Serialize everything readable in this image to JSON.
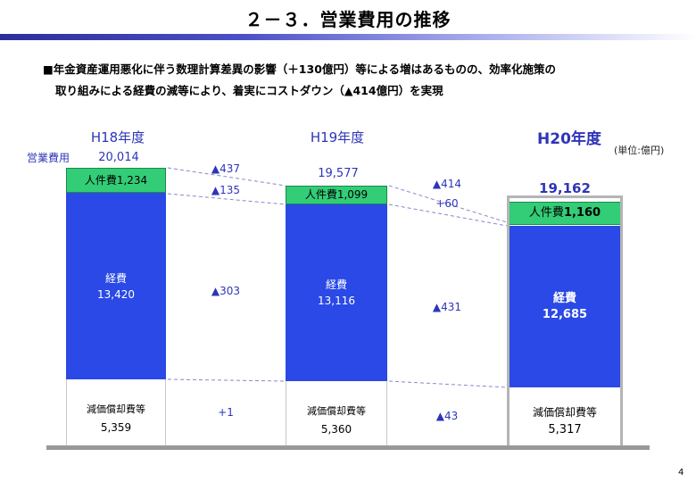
{
  "header": {
    "title": "２－３．営業費用の推移",
    "summary_line1": "■年金資産運用悪化に伴う数理計算差異の影響（＋130億円）等による増はあるものの、効率化施策の",
    "summary_line2": "取り組みによる経費の減等により、着実にコストダウン（▲414億円）を実現"
  },
  "chart_data": {
    "type": "bar",
    "stacked": true,
    "unit_label": "(単位:億円)",
    "row_label": "営業費用",
    "categories": [
      "H18年度",
      "H19年度",
      "H20年度"
    ],
    "totals": [
      "20,014",
      "19,577",
      "19,162"
    ],
    "series": [
      {
        "name": "人件費",
        "values": [
          1234,
          1099,
          1160
        ],
        "labels": [
          "人件費1,234",
          "人件費1,099",
          "人件費1,160"
        ],
        "color": "#33cc77"
      },
      {
        "name": "経費",
        "values": [
          13420,
          13116,
          12685
        ],
        "labels": [
          "13,420",
          "13,116",
          "12,685"
        ],
        "color": "#2a49e6"
      },
      {
        "name": "減価償却費等",
        "values": [
          5359,
          5360,
          5317
        ],
        "labels": [
          "5,359",
          "5,360",
          "5,317"
        ],
        "color": "#ffffff"
      }
    ],
    "changes": [
      {
        "total": "▲437",
        "jinkenhi": "▲135",
        "keihi": "▲303",
        "genka": "+1"
      },
      {
        "total": "▲414",
        "jinkenhi": "+60",
        "keihi": "▲431",
        "genka": "▲43"
      }
    ]
  },
  "page_number": "4"
}
